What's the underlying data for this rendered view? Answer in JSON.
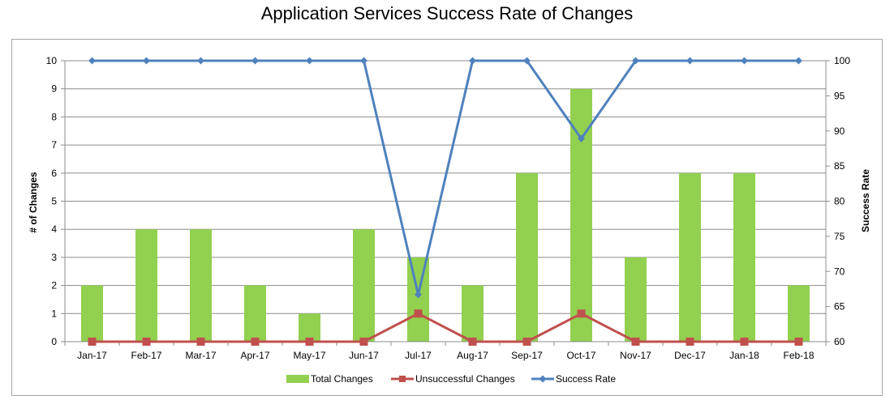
{
  "chart_data": {
    "type": "bar",
    "title": "Application Services Success Rate of Changes",
    "categories": [
      "Jan-17",
      "Feb-17",
      "Mar-17",
      "Apr-17",
      "May-17",
      "Jun-17",
      "Jul-17",
      "Aug-17",
      "Sep-17",
      "Oct-17",
      "Nov-17",
      "Dec-17",
      "Jan-18",
      "Feb-18"
    ],
    "series": [
      {
        "name": "Total Changes",
        "type": "bar",
        "axis": "left",
        "color": "#92d050",
        "values": [
          2,
          4,
          4,
          2,
          1,
          4,
          3,
          2,
          6,
          9,
          3,
          6,
          6,
          2
        ]
      },
      {
        "name": "Unsuccessful Changes",
        "type": "line",
        "axis": "left",
        "color": "#c0504d",
        "marker": "square",
        "values": [
          0,
          0,
          0,
          0,
          0,
          0,
          1,
          0,
          0,
          1,
          0,
          0,
          0,
          0
        ]
      },
      {
        "name": "Success Rate",
        "type": "line",
        "axis": "right",
        "color": "#4f81bd",
        "marker": "diamond",
        "values": [
          100,
          100,
          100,
          100,
          100,
          100,
          66.7,
          100,
          100,
          88.9,
          100,
          100,
          100,
          100
        ]
      }
    ],
    "ylabel": "# of Changes",
    "ylabel_right": "Success Rate",
    "ylim": [
      0,
      10
    ],
    "ylim_right": [
      60,
      100
    ],
    "yticks": [
      "0",
      "1",
      "2",
      "3",
      "4",
      "5",
      "6",
      "7",
      "8",
      "9",
      "10"
    ],
    "yticks_right": [
      "60",
      "65",
      "70",
      "75",
      "80",
      "85",
      "90",
      "95",
      "100"
    ],
    "grid": true,
    "legend_position": "bottom"
  }
}
